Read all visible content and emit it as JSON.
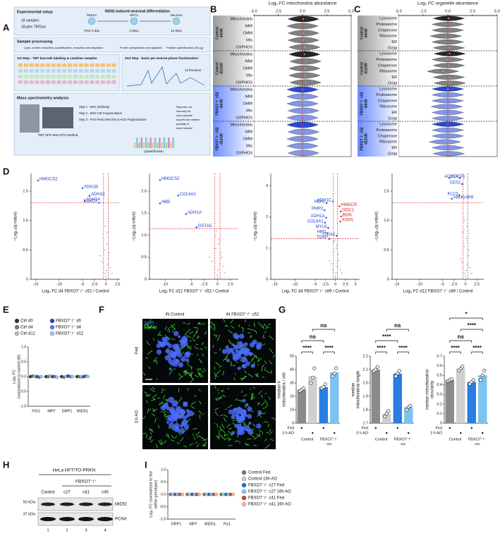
{
  "panel_labels": [
    "A",
    "B",
    "C",
    "D",
    "E",
    "F",
    "G",
    "H",
    "I"
  ],
  "panel_a": {
    "setup_title": "Experimental setup",
    "samples": "18 samples",
    "plex": "18-plex TMTpro",
    "diff_title": "NGN2-induced neuronal differentiation",
    "stages": [
      "hESCs",
      "NPCs",
      "Neurons"
    ],
    "times": [
      "Time 0 day",
      "4 days",
      "12 days"
    ],
    "processing_title": "Sample processing",
    "step1": "Lysis, protein extraction, quantification, reduction and alkylation",
    "step2": "Protein precipitation and digestion",
    "step3": "Peptide quantification (50 µg)",
    "tmt_title": "1st Step - TMT barcode labeling & combine samples",
    "frac_title": "2nd Step - basic pH reverse-phase fractionation",
    "fractions": "12 fractions",
    "ms_title": "Mass spectrometry analysis",
    "method": "TMT SPS-MS3 RTS Method",
    "ms_steps": [
      "Step 1 - MS1 (Orbitrap)",
      "Step 2 - MS2 CID Fragmentation",
      "Step 3 - RTS Peak Selection & HCD Fragmentation"
    ],
    "reporter": [
      "Reporter ion",
      "intensity for",
      "each peptide",
      "reports the relative",
      "quantity in",
      "each sample"
    ],
    "quant": "Quantification"
  },
  "panel_b": {
    "type": "violin",
    "title": "Log₂ FC mitochondria abundance",
    "xlim": [
      -5,
      5
    ],
    "xticks": [
      {
        "value": -5,
        "label": "-5.0"
      },
      -2.5,
      {
        "value": 0,
        "label": "0.0"
      },
      2.5,
      {
        "value": 5,
        "label": "5.0"
      }
    ],
    "categories": [
      "Mitochondria",
      "IMM",
      "OMM",
      "Mtx",
      "OXPHOS"
    ],
    "groups": [
      {
        "label": [
          "Control",
          "d4/d0"
        ],
        "color": "#1a1a1a",
        "values": [
          0.1,
          0,
          0.1,
          0.1,
          0.2
        ]
      },
      {
        "label": [
          "Control",
          "d12/d0"
        ],
        "color": "#1a1a1a",
        "values": [
          0.2,
          0.3,
          0.2,
          0.2,
          0.3
        ]
      },
      {
        "label": [
          "FBXO7⁻/⁻ c52",
          "d4/d0"
        ],
        "color": "#1f3fd0",
        "values": [
          0,
          0,
          0,
          0.1,
          0
        ]
      },
      {
        "label": [
          "FBXO7⁻/⁻ c52",
          "d12/d0"
        ],
        "color": "#1f3fd0",
        "values": [
          0,
          0.1,
          0,
          0,
          0.1
        ]
      }
    ]
  },
  "panel_c": {
    "type": "violin",
    "title": "Log₂ FC organelle abundance",
    "xlim": [
      -5,
      5
    ],
    "xticks": [
      {
        "value": -5,
        "label": "-5.0"
      },
      -2.5,
      {
        "value": 0,
        "label": "0.0"
      },
      2.5,
      {
        "value": 5,
        "label": "5.0"
      }
    ],
    "categories": [
      "Lysosome",
      "Proteasome",
      "Chaperone",
      "Ribosome",
      "ER",
      "Golgi"
    ],
    "groups": [
      {
        "label": [
          "Control",
          "d4/d0"
        ],
        "color": "#1a1a1a",
        "values": [
          0.1,
          0,
          0,
          -0.2,
          0,
          0.1
        ]
      },
      {
        "label": [
          "Control",
          "d12/d0"
        ],
        "color": "#1a1a1a",
        "values": [
          0.2,
          0,
          0.1,
          -0.5,
          0.1,
          0.2
        ]
      },
      {
        "label": [
          "FBXO7⁻/⁻ c52",
          "d4/d0"
        ],
        "color": "#1f3fd0",
        "values": [
          0,
          0,
          0,
          -0.1,
          0,
          0
        ]
      },
      {
        "label": [
          "FBXO7⁻/⁻ c52",
          "d12/d0"
        ],
        "color": "#1f3fd0",
        "values": [
          0,
          0,
          0,
          -0.3,
          0,
          0.1
        ]
      }
    ]
  },
  "panel_d": {
    "plots": [
      {
        "type": "scatter",
        "xlabel": "Log₂ FC d4 FBXO7⁻/⁻ c52 / Control",
        "ylabel": "−Log₁₀(q-value)",
        "xlim": [
          -16,
          3
        ],
        "xticks": [
          -15,
          -10,
          -5,
          -2.5,
          0,
          2.5
        ],
        "ylim": [
          0,
          1.8
        ],
        "yticks": [
          0,
          0.5,
          {
            "value": 1,
            "label": "1.0"
          },
          1.5
        ],
        "q_threshold": 1.3,
        "fc_threshold": [
          -0.5,
          0.5
        ],
        "background_color": "#bbbbbb",
        "x": [
          -1.2,
          -0.8,
          -0.5,
          -0.3,
          -0.1,
          0.1,
          0.2,
          0.4,
          0.6,
          0.9,
          1.3,
          -0.6,
          0.3,
          -0.2,
          0,
          0.7
        ],
        "y": [
          0.4,
          0.3,
          0.2,
          0.5,
          0.1,
          0.15,
          0.6,
          0.25,
          0.35,
          0.2,
          0.1,
          0.7,
          0.8,
          0.9,
          0.05,
          0.45
        ],
        "labeled": [
          {
            "label": "HMGCS2",
            "x": -14.5,
            "y": 1.68,
            "color": "#1f3fd0"
          },
          {
            "label": "ADH1B",
            "x": -5,
            "y": 1.55,
            "color": "#1f3fd0"
          },
          {
            "label": "ADH1C",
            "x": -3.5,
            "y": 1.42,
            "color": "#1f3fd0"
          },
          {
            "label": "ADH1A",
            "x": -4.5,
            "y": 1.33,
            "color": "#1f3fd0"
          },
          {
            "label": "FBXO7",
            "x": -1.5,
            "y": 1.3,
            "color": "#1f3fd0"
          }
        ]
      },
      {
        "type": "scatter",
        "xlabel": "Log₂ FC d12 FBXO7⁻/⁻ c52 / Control",
        "ylabel": "−Log₁₀(q-value)",
        "xlim": [
          -13,
          4
        ],
        "xticks": [
          -10,
          -5,
          -2.5,
          0,
          2.5
        ],
        "ylim": [
          0,
          2.4
        ],
        "yticks": [
          0,
          0.5,
          {
            "value": 1,
            "label": "1.0"
          },
          1.5,
          {
            "value": 2,
            "label": "2.0"
          }
        ],
        "q_threshold": 1.15,
        "fc_threshold": [
          -0.5,
          0.5
        ],
        "background_color": "#bbbbbb",
        "x": [
          -1.5,
          -1,
          -0.6,
          -0.3,
          -0.1,
          0.1,
          0.3,
          0.5,
          0.8,
          1.1,
          1.4,
          -0.4,
          0.2,
          -0.2,
          0,
          0.6
        ],
        "y": [
          0.5,
          0.4,
          0.3,
          0.7,
          0.1,
          0.2,
          0.9,
          0.35,
          0.5,
          0.3,
          0.15,
          1,
          0.8,
          1.1,
          0.05,
          0.6
        ],
        "labeled": [
          {
            "label": "HMGCS2",
            "x": -11,
            "y": 2.25,
            "color": "#1f3fd0"
          },
          {
            "label": "COL6A2",
            "x": -7.5,
            "y": 1.9,
            "color": "#1f3fd0"
          },
          {
            "label": "HBB",
            "x": -11,
            "y": 1.72,
            "color": "#1f3fd0"
          },
          {
            "label": "ADH1A",
            "x": -6,
            "y": 1.48,
            "color": "#1f3fd0"
          },
          {
            "label": "GSTA5",
            "x": -4,
            "y": 1.18,
            "color": "#1f3fd0"
          }
        ]
      },
      {
        "type": "scatter",
        "xlabel": "Log₂ FC d4 FBXO7⁻/⁻ c89 / Control",
        "ylabel": "−Log₁₀(q-value)",
        "xlim": [
          -16,
          6
        ],
        "xticks": [
          -15,
          -10,
          -5,
          -2.5,
          0,
          2.5,
          5
        ],
        "ylim": [
          0,
          3.4
        ],
        "yticks": [
          0,
          1,
          2,
          3
        ],
        "q_threshold": 1.3,
        "fc_threshold": [
          -0.5,
          0.5
        ],
        "background_color": "#bbbbbb",
        "x": [
          -1.4,
          -1,
          -0.7,
          -0.4,
          -0.1,
          0.1,
          0.3,
          0.5,
          0.8,
          1.2,
          1.6,
          -0.5,
          0.2,
          -0.2,
          0,
          0.7
        ],
        "y": [
          0.6,
          0.5,
          0.3,
          0.9,
          0.1,
          0.2,
          1.1,
          0.4,
          0.6,
          0.3,
          0.2,
          1.2,
          1,
          1.25,
          0.05,
          0.8
        ],
        "labeled": [
          {
            "label": "HBA1",
            "x": -2.2,
            "y": 2.45,
            "color": "#1f3fd0"
          },
          {
            "label": "PMP2",
            "x": -2.7,
            "y": 2.22,
            "color": "#1f3fd0"
          },
          {
            "label": "ADH1A",
            "x": -2.3,
            "y": 1.98,
            "color": "#1f3fd0"
          },
          {
            "label": "COL6A1",
            "x": -2.6,
            "y": 1.82,
            "color": "#1f3fd0"
          },
          {
            "label": "MYL6",
            "x": -1.8,
            "y": 1.65,
            "color": "#1f3fd0"
          },
          {
            "label": "HBD",
            "x": -2,
            "y": 1.48,
            "color": "#1f3fd0"
          },
          {
            "label": "TDRP",
            "x": -1.5,
            "y": 1.3,
            "color": "#1f3fd0"
          },
          {
            "label": "ADH1C",
            "x": -0.6,
            "y": 2.5,
            "color": "#1f3fd0"
          },
          {
            "label": "ITGA2",
            "x": 0.3,
            "y": 1.4,
            "color": "#1f3fd0"
          },
          {
            "label": "HMGCR",
            "x": 1,
            "y": 2.35,
            "color": "#d62020"
          },
          {
            "label": "ODC1",
            "x": 1.3,
            "y": 2.18,
            "color": "#d62020"
          },
          {
            "label": "BGN",
            "x": 1.4,
            "y": 2.02,
            "color": "#d62020"
          },
          {
            "label": "ASNS",
            "x": 1.2,
            "y": 1.86,
            "color": "#d62020"
          }
        ]
      },
      {
        "type": "scatter",
        "xlabel": "Log₂ FC d12 FBXO7⁻/⁻ c89 / Control",
        "ylabel": "−Log₁₀(q-value)",
        "xlim": [
          -16,
          4
        ],
        "xticks": [
          -15,
          -10,
          -5,
          -2.5,
          0,
          2.5
        ],
        "ylim": [
          0,
          1.8
        ],
        "yticks": [
          0,
          0.5,
          {
            "value": 1,
            "label": "1.0"
          },
          1.5
        ],
        "q_threshold": 1.3,
        "fc_threshold": [
          -0.5,
          0.5
        ],
        "background_color": "#bbbbbb",
        "x": [
          -1.1,
          -0.8,
          -0.5,
          -0.3,
          -0.1,
          0.1,
          0.2,
          0.4,
          0.7,
          1,
          1.3,
          -0.6,
          0.3,
          -0.2,
          0,
          0.8
        ],
        "y": [
          0.35,
          0.3,
          0.2,
          0.55,
          0.1,
          0.15,
          0.7,
          0.25,
          0.4,
          0.2,
          0.1,
          0.8,
          0.9,
          1,
          0.05,
          0.5
        ],
        "labeled": [
          {
            "label": "CDCP1",
            "x": -3.5,
            "y": 1.72,
            "color": "#1f3fd0"
          },
          {
            "label": "ADH1A",
            "x": -1.2,
            "y": 1.72,
            "color": "#1f3fd0"
          },
          {
            "label": "CES1",
            "x": -0.7,
            "y": 1.62,
            "color": "#1f3fd0"
          },
          {
            "label": "KLC3",
            "x": -1.3,
            "y": 1.43,
            "color": "#1f3fd0"
          },
          {
            "label": "ARHGAP8",
            "x": -3,
            "y": 1.37,
            "color": "#1f3fd0"
          }
        ]
      }
    ]
  },
  "panel_e": {
    "type": "dot",
    "ylabel": [
      "Log₂ FC",
      "(normalized to control d0)"
    ],
    "ylim": [
      -1,
      1
    ],
    "yticks": [
      {
        "value": -1,
        "label": "-1.0"
      },
      -0.5,
      {
        "value": 0,
        "label": "0.0"
      },
      0.5,
      {
        "value": 1,
        "label": "1.0"
      }
    ],
    "categories": [
      "FIS1",
      "MFF",
      "DRP1",
      "MiD51"
    ],
    "series": [
      {
        "name": "Ctrl d0",
        "color": "#333333",
        "values": [
          0,
          0,
          0,
          0
        ]
      },
      {
        "name": "Ctrl d4",
        "color": "#777777",
        "values": [
          0.02,
          0,
          -0.02,
          0
        ]
      },
      {
        "name": "Ctrl d12",
        "color": "#bbbbbb",
        "values": [
          0,
          0.02,
          0,
          -0.02
        ]
      },
      {
        "name": "FBXO7⁻/⁻ d0",
        "color": "#1f3fd0",
        "values": [
          0,
          0,
          0.02,
          0
        ]
      },
      {
        "name": "FBXO7⁻/⁻ d4",
        "color": "#5a7fe0",
        "values": [
          -0.02,
          0,
          0,
          0.02
        ]
      },
      {
        "name": "FBXO7⁻/⁻ d12",
        "color": "#a9c4f2",
        "values": [
          0,
          -0.02,
          0,
          0
        ]
      }
    ]
  },
  "panel_f": {
    "columns": [
      "iN Control",
      "iN FBXO7⁻/⁻ c52"
    ],
    "rows": [
      "Fed",
      "3 h AO"
    ],
    "channels": [
      {
        "name": "DAPI",
        "color": "#4a6bff"
      },
      {
        "name": "HSP60",
        "color": "#3ddc3d"
      }
    ]
  },
  "panel_g": {
    "type": "bar",
    "colors": [
      "#8a8a8a",
      "#cfcfcf",
      "#2a7de1",
      "#7cc4f0"
    ],
    "row_labels": [
      "Fed",
      "3 h AO"
    ],
    "group_labels": [
      "Control",
      "FBXO7⁻/⁻"
    ],
    "clone": "c52",
    "charts": [
      {
        "ylabel": [
          "median #",
          "mitochondria / cell"
        ],
        "ylim": [
          0,
          50
        ],
        "yticks": [
          0,
          10,
          20,
          30,
          40,
          50
        ],
        "values": [
          25,
          35,
          27,
          38
        ],
        "points": [
          [
            24,
            25,
            26
          ],
          [
            30,
            34,
            41
          ],
          [
            26,
            27,
            29
          ],
          [
            35,
            37,
            41
          ]
        ],
        "significance": [
          "****",
          "****",
          "ns",
          "ns"
        ]
      },
      {
        "ylabel": [
          "median",
          "mitochondrial length"
        ],
        "ylim": [
          1.7,
          2.2
        ],
        "yticks": [
          1.7,
          1.8,
          1.9,
          {
            "value": 2,
            "label": "2.0"
          },
          2.1,
          2.2
        ],
        "values": [
          2.1,
          1.77,
          2.07,
          1.82
        ],
        "points": [
          [
            2.09,
            2.1,
            2.12
          ],
          [
            1.75,
            1.77,
            1.79
          ],
          [
            2.05,
            2.07,
            2.09
          ],
          [
            1.8,
            1.82,
            1.83
          ]
        ],
        "significance": [
          "****",
          "****",
          "****",
          "ns"
        ]
      },
      {
        "ylabel": [
          "median mitochondrial",
          "circularity"
        ],
        "ylim": [
          0,
          0.7
        ],
        "yticks": [
          0,
          0.1,
          0.2,
          0.3,
          0.4,
          0.5,
          0.6,
          0.7
        ],
        "values": [
          0.45,
          0.57,
          0.43,
          0.5
        ],
        "points": [
          [
            0.44,
            0.45,
            0.46
          ],
          [
            0.55,
            0.57,
            0.59
          ],
          [
            0.41,
            0.43,
            0.45
          ],
          [
            0.45,
            0.5,
            0.55
          ]
        ],
        "significance": [
          "****",
          "****",
          "ns",
          "****",
          "*"
        ]
      }
    ]
  },
  "panel_h": {
    "cell_line": "HeLa HFT/TO-PRKN",
    "genotype": "FBXO7⁻/⁻",
    "lanes": [
      "Control",
      "c27",
      "c41",
      "c45"
    ],
    "lane_numbers": [
      "1",
      "2",
      "3",
      "4"
    ],
    "markers": [
      "50 kDa",
      "37 kDa"
    ],
    "bands": [
      "MiD51",
      "PCNA"
    ]
  },
  "panel_i": {
    "type": "dot",
    "ylabel": [
      "Log₂ FC (normalized to fed",
      "within genotype)"
    ],
    "ylim": [
      -1,
      1
    ],
    "yticks": [
      {
        "value": -1,
        "label": "-1.0"
      },
      -0.5,
      {
        "value": 0,
        "label": "0.0"
      },
      0.5,
      {
        "value": 1,
        "label": "1.0"
      }
    ],
    "categories": [
      "DRP1",
      "MFF",
      "MiD51",
      "Fis1"
    ],
    "series": [
      {
        "name": "Control Fed",
        "color": "#777777",
        "values": [
          0,
          0,
          0,
          0
        ]
      },
      {
        "name": "Control 16h AO",
        "color": "#cccccc",
        "values": [
          0,
          0,
          0,
          0
        ]
      },
      {
        "name": "FBXO7⁻/⁻ c27 Fed",
        "color": "#1f6fd0",
        "values": [
          0,
          0,
          0,
          0
        ]
      },
      {
        "name": "FBXO7⁻/⁻ c27 16h AO",
        "color": "#8ec5f0",
        "values": [
          0,
          0,
          0,
          0
        ]
      },
      {
        "name": "FBXO7⁻/⁻ c41 Fed",
        "color": "#d9431e",
        "values": [
          0,
          0,
          0,
          0
        ]
      },
      {
        "name": "FBXO7⁻/⁻ c41 16h AO",
        "color": "#f2b8a8",
        "values": [
          0,
          0,
          0,
          0
        ]
      }
    ]
  }
}
